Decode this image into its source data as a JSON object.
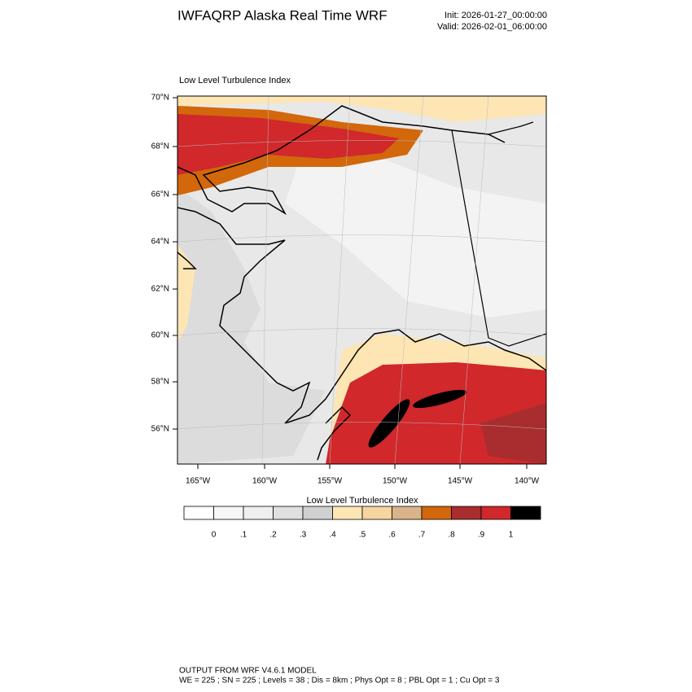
{
  "header": {
    "title": "IWFAQRP Alaska Real Time WRF",
    "init": "Init: 2026-01-27_00:00:00",
    "valid": "Valid: 2026-02-01_06:00:00"
  },
  "map": {
    "title": "Low Level Turbulence Index",
    "lat_labels": [
      "70°N",
      "68°N",
      "66°N",
      "64°N",
      "62°N",
      "60°N",
      "58°N",
      "56°N"
    ],
    "lon_labels": [
      "165°W",
      "160°W",
      "155°W",
      "150°W",
      "145°W",
      "140°W"
    ]
  },
  "colorbar": {
    "title": "Low Level Turbulence Index",
    "labels": [
      "0",
      ".1",
      ".2",
      ".3",
      ".4",
      ".5",
      ".6",
      ".7",
      ".8",
      ".9",
      "1"
    ],
    "colors": [
      "#ffffff",
      "#f7f7f7",
      "#efefef",
      "#e0e0e0",
      "#d0d0d0",
      "#fde5b4",
      "#f6d5a0",
      "#d9b48a",
      "#d2670c",
      "#a92d2e",
      "#d0282b",
      "#000000"
    ]
  },
  "footer": {
    "line1": "OUTPUT FROM WRF V4.6.1 MODEL",
    "line2": "WE = 225 ; SN = 225 ; Levels = 38 ; Dis = 8km ; Phys Opt = 8 ; PBL Opt = 1 ; Cu Opt = 3"
  }
}
